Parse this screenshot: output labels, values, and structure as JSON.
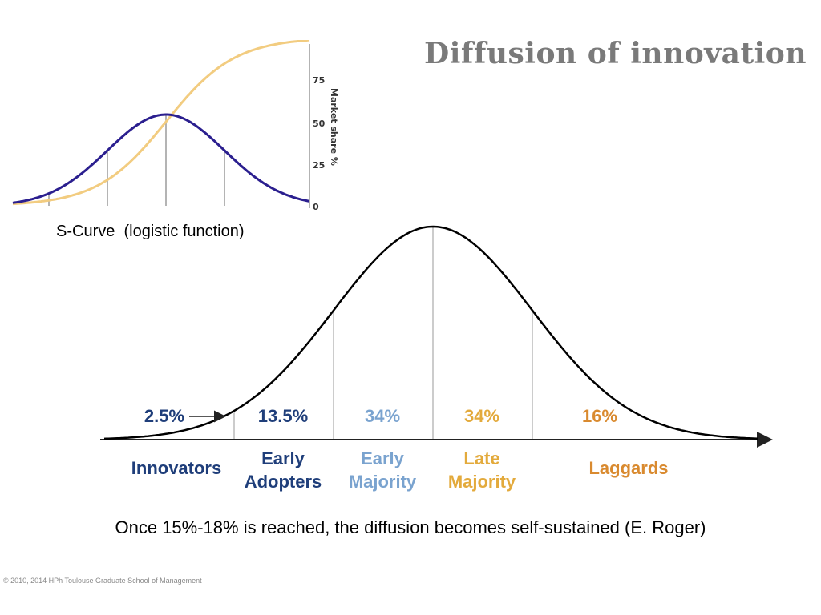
{
  "title": "Diffusion of innovation",
  "scurve": {
    "caption": "S-Curve  (logistic function)",
    "axis_label": "Market share %",
    "ticks": [
      "75",
      "50",
      "25",
      "0"
    ],
    "colors": {
      "bell": "#2b1f8f",
      "logistic": "#f2cc80",
      "dividers": "#9a9a9a"
    }
  },
  "bell": {
    "segments": [
      {
        "id": "innovators",
        "percent": "2.5%",
        "label_lines": [
          "Innovators"
        ],
        "color": "#1f3e7a"
      },
      {
        "id": "early-adopters",
        "percent": "13.5%",
        "label_lines": [
          "Early",
          "Adopters"
        ],
        "color": "#1f3e7a"
      },
      {
        "id": "early-majority",
        "percent": "34%",
        "label_lines": [
          "Early",
          "Majority"
        ],
        "color": "#7aa3cf"
      },
      {
        "id": "late-majority",
        "percent": "34%",
        "label_lines": [
          "Late",
          "Majority"
        ],
        "color": "#e3aa3c"
      },
      {
        "id": "laggards",
        "percent": "16%",
        "label_lines": [
          "Laggards"
        ],
        "color": "#d98a2f"
      }
    ],
    "colors": {
      "curve": "#000000",
      "dividers": "#bbbbbb"
    }
  },
  "conclusion": "Once 15%-18% is reached, the diffusion becomes self-sustained (E. Roger)",
  "footer": "© 2010, 2014 HPh Toulouse Graduate School of Management"
}
